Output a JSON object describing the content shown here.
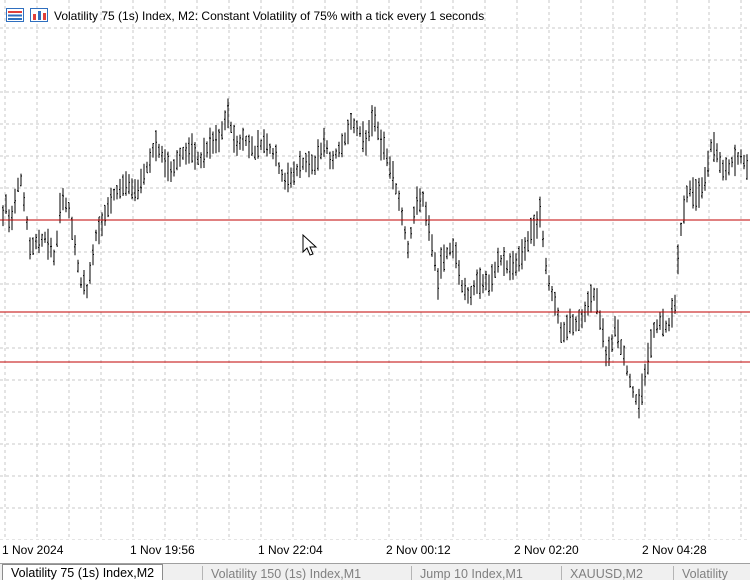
{
  "window": {
    "title": "Volatility 75 (1s) Index, M2:  Constant Volatility of 75% with a tick every 1 seconds"
  },
  "colors": {
    "background": "#ffffff",
    "grid": "#c8c8c8",
    "bars": "#000000",
    "level_lines": "#c00000"
  },
  "icons": [
    "chart-list-icon",
    "bar-chart-icon",
    "mouse-cursor-icon"
  ],
  "chart_data": {
    "type": "ohlc-bar",
    "symbol": "Volatility 75 (1s) Index",
    "timeframe": "M2",
    "x_tick_labels": [
      "1 Nov 2024",
      "1 Nov 19:56",
      "1 Nov 22:04",
      "2 Nov 00:12",
      "2 Nov 02:20",
      "2 Nov 04:28"
    ],
    "horizontal_levels_count": 3,
    "grid": true,
    "price_series_shape": [
      [
        0,
        0.55
      ],
      [
        5,
        0.63
      ],
      [
        10,
        0.58
      ],
      [
        20,
        0.68
      ],
      [
        30,
        0.54
      ],
      [
        45,
        0.56
      ],
      [
        55,
        0.52
      ],
      [
        62,
        0.64
      ],
      [
        70,
        0.6
      ],
      [
        80,
        0.48
      ],
      [
        88,
        0.46
      ],
      [
        95,
        0.56
      ],
      [
        105,
        0.6
      ],
      [
        115,
        0.64
      ],
      [
        125,
        0.66
      ],
      [
        135,
        0.64
      ],
      [
        145,
        0.68
      ],
      [
        155,
        0.73
      ],
      [
        165,
        0.7
      ],
      [
        170,
        0.68
      ],
      [
        180,
        0.71
      ],
      [
        190,
        0.72
      ],
      [
        200,
        0.7
      ],
      [
        210,
        0.73
      ],
      [
        220,
        0.74
      ],
      [
        228,
        0.79
      ],
      [
        235,
        0.73
      ],
      [
        245,
        0.74
      ],
      [
        255,
        0.72
      ],
      [
        265,
        0.74
      ],
      [
        275,
        0.71
      ],
      [
        285,
        0.66
      ],
      [
        295,
        0.68
      ],
      [
        305,
        0.7
      ],
      [
        315,
        0.69
      ],
      [
        325,
        0.74
      ],
      [
        330,
        0.7
      ],
      [
        340,
        0.72
      ],
      [
        350,
        0.77
      ],
      [
        358,
        0.76
      ],
      [
        366,
        0.74
      ],
      [
        375,
        0.78
      ],
      [
        382,
        0.73
      ],
      [
        390,
        0.69
      ],
      [
        400,
        0.62
      ],
      [
        408,
        0.54
      ],
      [
        415,
        0.61
      ],
      [
        422,
        0.64
      ],
      [
        430,
        0.56
      ],
      [
        438,
        0.48
      ],
      [
        445,
        0.53
      ],
      [
        455,
        0.54
      ],
      [
        462,
        0.47
      ],
      [
        470,
        0.45
      ],
      [
        480,
        0.48
      ],
      [
        490,
        0.47
      ],
      [
        500,
        0.52
      ],
      [
        510,
        0.5
      ],
      [
        520,
        0.52
      ],
      [
        530,
        0.56
      ],
      [
        540,
        0.6
      ],
      [
        548,
        0.48
      ],
      [
        555,
        0.44
      ],
      [
        562,
        0.37
      ],
      [
        570,
        0.4
      ],
      [
        580,
        0.4
      ],
      [
        588,
        0.43
      ],
      [
        595,
        0.46
      ],
      [
        600,
        0.41
      ],
      [
        607,
        0.33
      ],
      [
        615,
        0.39
      ],
      [
        622,
        0.35
      ],
      [
        630,
        0.29
      ],
      [
        638,
        0.25
      ],
      [
        645,
        0.3
      ],
      [
        652,
        0.38
      ],
      [
        660,
        0.4
      ],
      [
        668,
        0.39
      ],
      [
        675,
        0.44
      ],
      [
        680,
        0.56
      ],
      [
        686,
        0.64
      ],
      [
        692,
        0.65
      ],
      [
        698,
        0.63
      ],
      [
        705,
        0.67
      ],
      [
        712,
        0.74
      ],
      [
        718,
        0.71
      ],
      [
        725,
        0.68
      ],
      [
        732,
        0.7
      ],
      [
        740,
        0.71
      ],
      [
        748,
        0.68
      ]
    ]
  },
  "axis": {
    "labels": [
      "1 Nov 2024",
      "1 Nov 19:56",
      "1 Nov 22:04",
      "2 Nov 00:12",
      "2 Nov 02:20",
      "2 Nov 04:28"
    ]
  },
  "tabs": [
    {
      "label": "Volatility 75 (1s) Index,M2",
      "active": true
    },
    {
      "label": "Volatility 150 (1s) Index,M1",
      "active": false
    },
    {
      "label": "Jump 10 Index,M1",
      "active": false
    },
    {
      "label": "XAUUSD,M2",
      "active": false
    },
    {
      "label": "Volatility",
      "active": false
    }
  ]
}
